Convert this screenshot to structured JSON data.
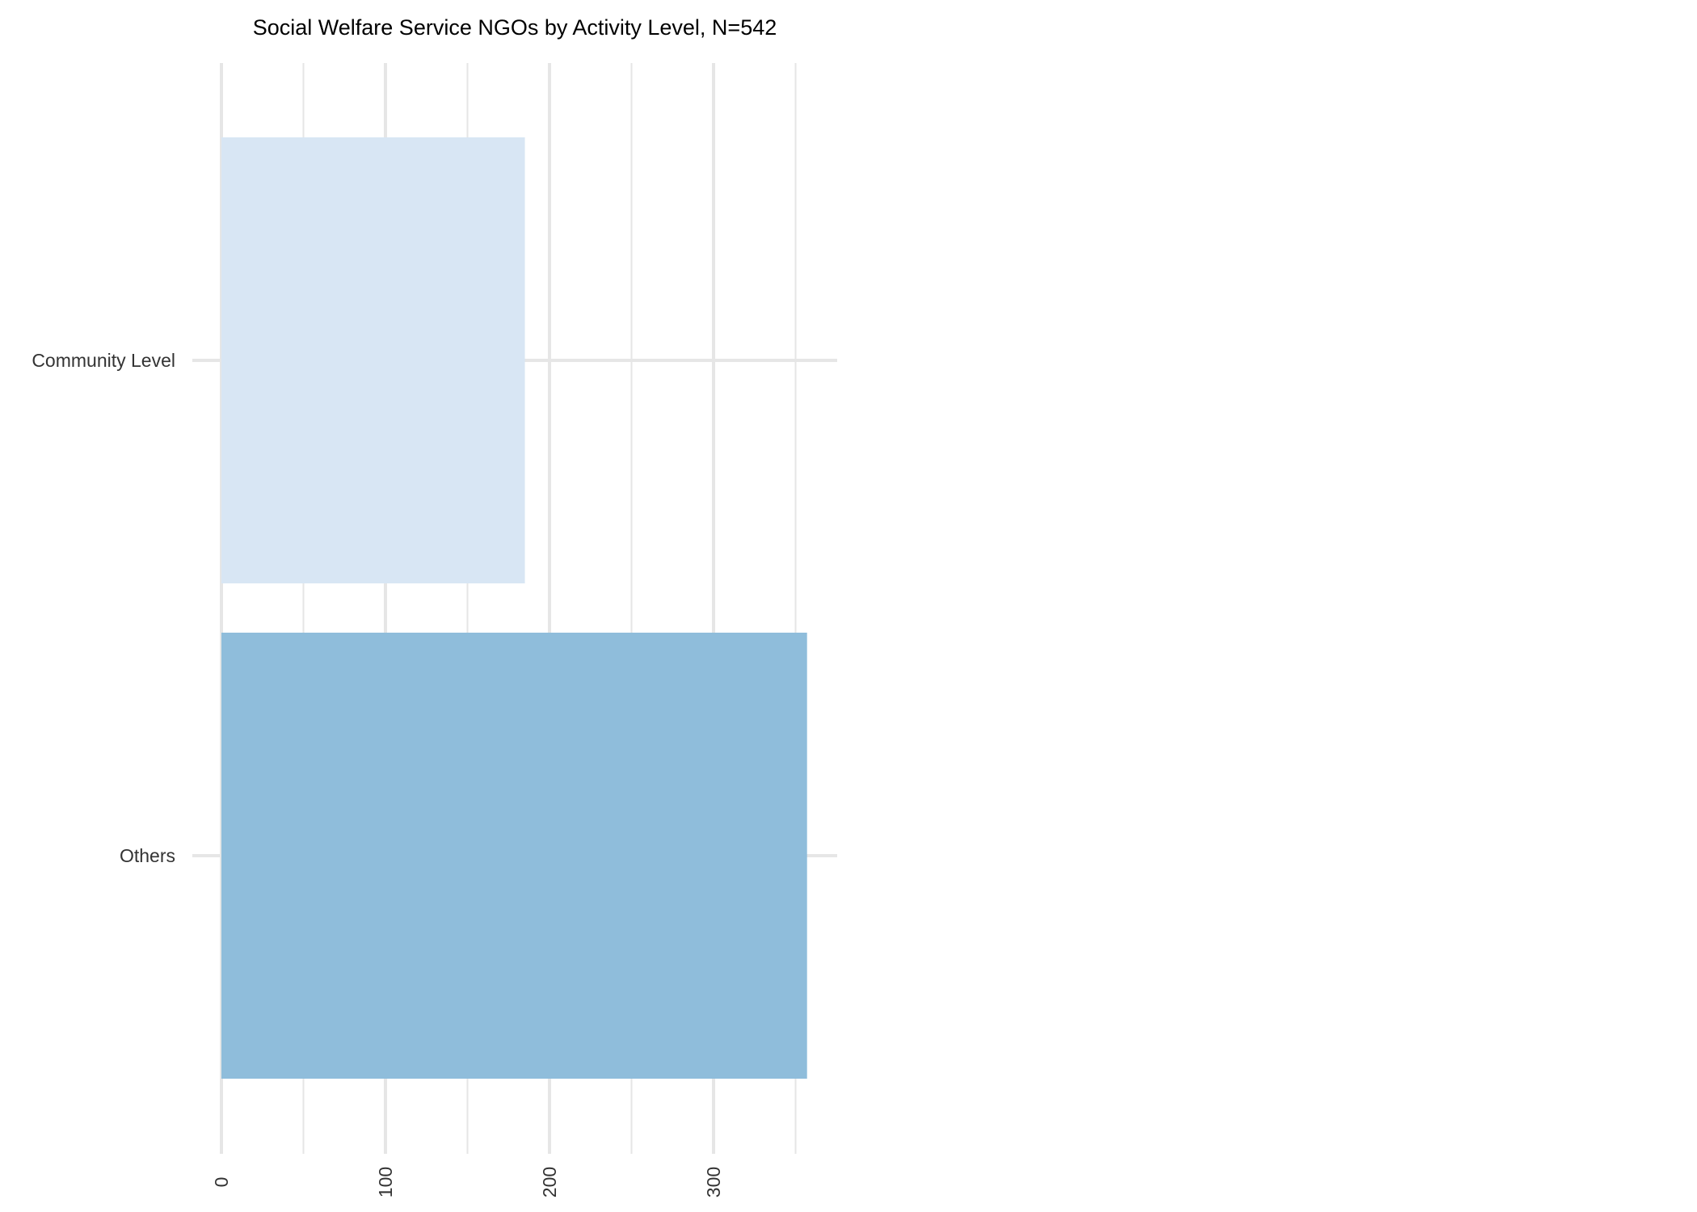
{
  "chart_data": {
    "type": "bar",
    "orientation": "horizontal",
    "title": "Social Welfare Service NGOs by Activity Level, N=542",
    "xlabel": "",
    "ylabel": "",
    "categories": [
      "Community Level",
      "Others"
    ],
    "values": [
      185,
      357
    ],
    "colors": [
      "#d8e6f4",
      "#8fbddb"
    ],
    "xlim": [
      0,
      375
    ],
    "x_ticks": [
      0,
      100,
      200,
      300
    ],
    "x_minor_ticks": [
      50,
      150,
      250,
      350
    ],
    "tick_labels": [
      "0",
      "100",
      "200",
      "300"
    ],
    "grid": true,
    "grid_color": "#e6e6e6",
    "legend": "none"
  }
}
